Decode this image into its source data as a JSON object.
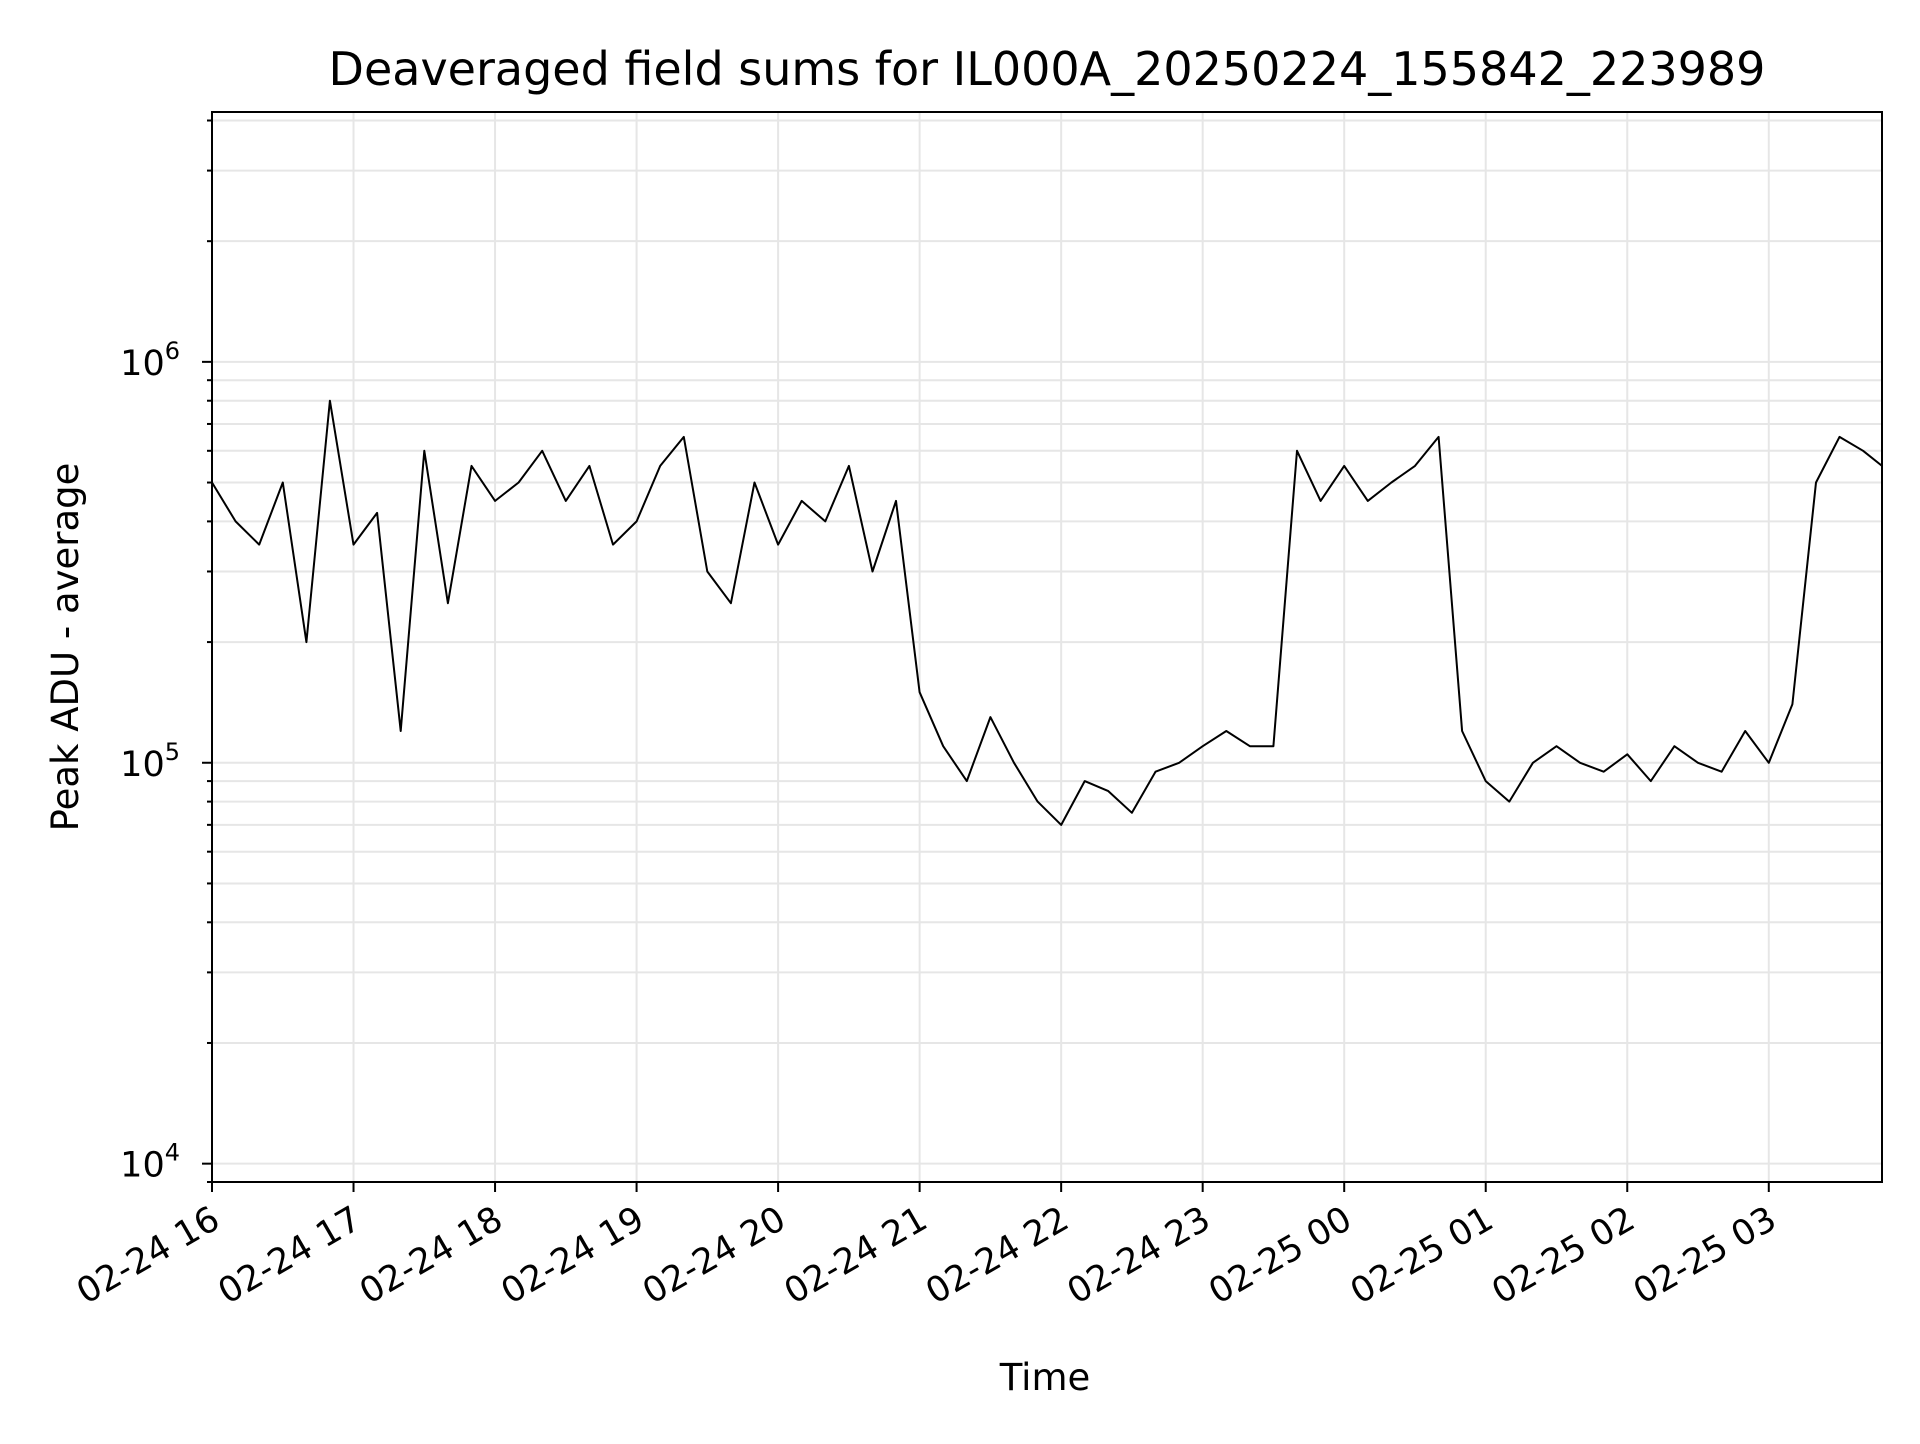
{
  "chart_data": {
    "type": "line",
    "title": "Deaveraged field sums for IL000A_20250224_155842_223989",
    "xlabel": "Time",
    "ylabel": "Peak ADU - average",
    "yscale": "log",
    "ylim": [
      9000,
      4200000
    ],
    "xlim": [
      "2025-02-24 16:00",
      "2025-02-25 03:48"
    ],
    "grid": true,
    "x_ticks": [
      {
        "value": "2025-02-24 16:00",
        "label": "02-24 16"
      },
      {
        "value": "2025-02-24 17:00",
        "label": "02-24 17"
      },
      {
        "value": "2025-02-24 18:00",
        "label": "02-24 18"
      },
      {
        "value": "2025-02-24 19:00",
        "label": "02-24 19"
      },
      {
        "value": "2025-02-24 20:00",
        "label": "02-24 20"
      },
      {
        "value": "2025-02-24 21:00",
        "label": "02-24 21"
      },
      {
        "value": "2025-02-24 22:00",
        "label": "02-24 22"
      },
      {
        "value": "2025-02-24 23:00",
        "label": "02-24 23"
      },
      {
        "value": "2025-02-25 00:00",
        "label": "02-25 00"
      },
      {
        "value": "2025-02-25 01:00",
        "label": "02-25 01"
      },
      {
        "value": "2025-02-25 02:00",
        "label": "02-25 02"
      },
      {
        "value": "2025-02-25 03:00",
        "label": "02-25 03"
      }
    ],
    "y_ticks": [
      {
        "value": 10000,
        "base": "10",
        "exp": "4"
      },
      {
        "value": 100000,
        "base": "10",
        "exp": "5"
      },
      {
        "value": 1000000,
        "base": "10",
        "exp": "6"
      }
    ],
    "line_color": "#000000",
    "series": [
      {
        "x": [
          "2025-02-24 16:00",
          "2025-02-24 16:10",
          "2025-02-24 16:20",
          "2025-02-24 16:30",
          "2025-02-24 16:40",
          "2025-02-24 16:50",
          "2025-02-24 17:00",
          "2025-02-24 17:10",
          "2025-02-24 17:20",
          "2025-02-24 17:30",
          "2025-02-24 17:40",
          "2025-02-24 17:50",
          "2025-02-24 18:00",
          "2025-02-24 18:10",
          "2025-02-24 18:20",
          "2025-02-24 18:30",
          "2025-02-24 18:40",
          "2025-02-24 18:50",
          "2025-02-24 19:00",
          "2025-02-24 19:10",
          "2025-02-24 19:20",
          "2025-02-24 19:30",
          "2025-02-24 19:40",
          "2025-02-24 19:50",
          "2025-02-24 20:00",
          "2025-02-24 20:10",
          "2025-02-24 20:20",
          "2025-02-24 20:30",
          "2025-02-24 20:40",
          "2025-02-24 20:50",
          "2025-02-24 21:00",
          "2025-02-24 21:10",
          "2025-02-24 21:20",
          "2025-02-24 21:30",
          "2025-02-24 21:40",
          "2025-02-24 21:50",
          "2025-02-24 22:00",
          "2025-02-24 22:10",
          "2025-02-24 22:20",
          "2025-02-24 22:30",
          "2025-02-24 22:40",
          "2025-02-24 22:50",
          "2025-02-24 23:00",
          "2025-02-24 23:10",
          "2025-02-24 23:20",
          "2025-02-24 23:30",
          "2025-02-24 23:40",
          "2025-02-24 23:50",
          "2025-02-25 00:00",
          "2025-02-25 00:10",
          "2025-02-25 00:20",
          "2025-02-25 00:30",
          "2025-02-25 00:40",
          "2025-02-25 00:50",
          "2025-02-25 01:00",
          "2025-02-25 01:10",
          "2025-02-25 01:20",
          "2025-02-25 01:30",
          "2025-02-25 01:40",
          "2025-02-25 01:50",
          "2025-02-25 02:00",
          "2025-02-25 02:10",
          "2025-02-25 02:20",
          "2025-02-25 02:30",
          "2025-02-25 02:40",
          "2025-02-25 02:50",
          "2025-02-25 03:00",
          "2025-02-25 03:10",
          "2025-02-25 03:20",
          "2025-02-25 03:30",
          "2025-02-25 03:40",
          "2025-02-25 03:48"
        ],
        "y": [
          500000,
          400000,
          350000,
          500000,
          200000,
          800000,
          350000,
          420000,
          120000,
          600000,
          250000,
          550000,
          450000,
          500000,
          600000,
          450000,
          550000,
          350000,
          400000,
          550000,
          650000,
          300000,
          250000,
          500000,
          350000,
          450000,
          400000,
          550000,
          300000,
          450000,
          150000,
          110000,
          90000,
          130000,
          100000,
          80000,
          70000,
          90000,
          85000,
          75000,
          95000,
          100000,
          110000,
          120000,
          110000,
          110000,
          600000,
          450000,
          550000,
          450000,
          500000,
          550000,
          650000,
          120000,
          90000,
          80000,
          100000,
          110000,
          100000,
          95000,
          105000,
          90000,
          110000,
          100000,
          95000,
          120000,
          100000,
          140000,
          500000,
          650000,
          600000,
          550000
        ]
      }
    ]
  }
}
